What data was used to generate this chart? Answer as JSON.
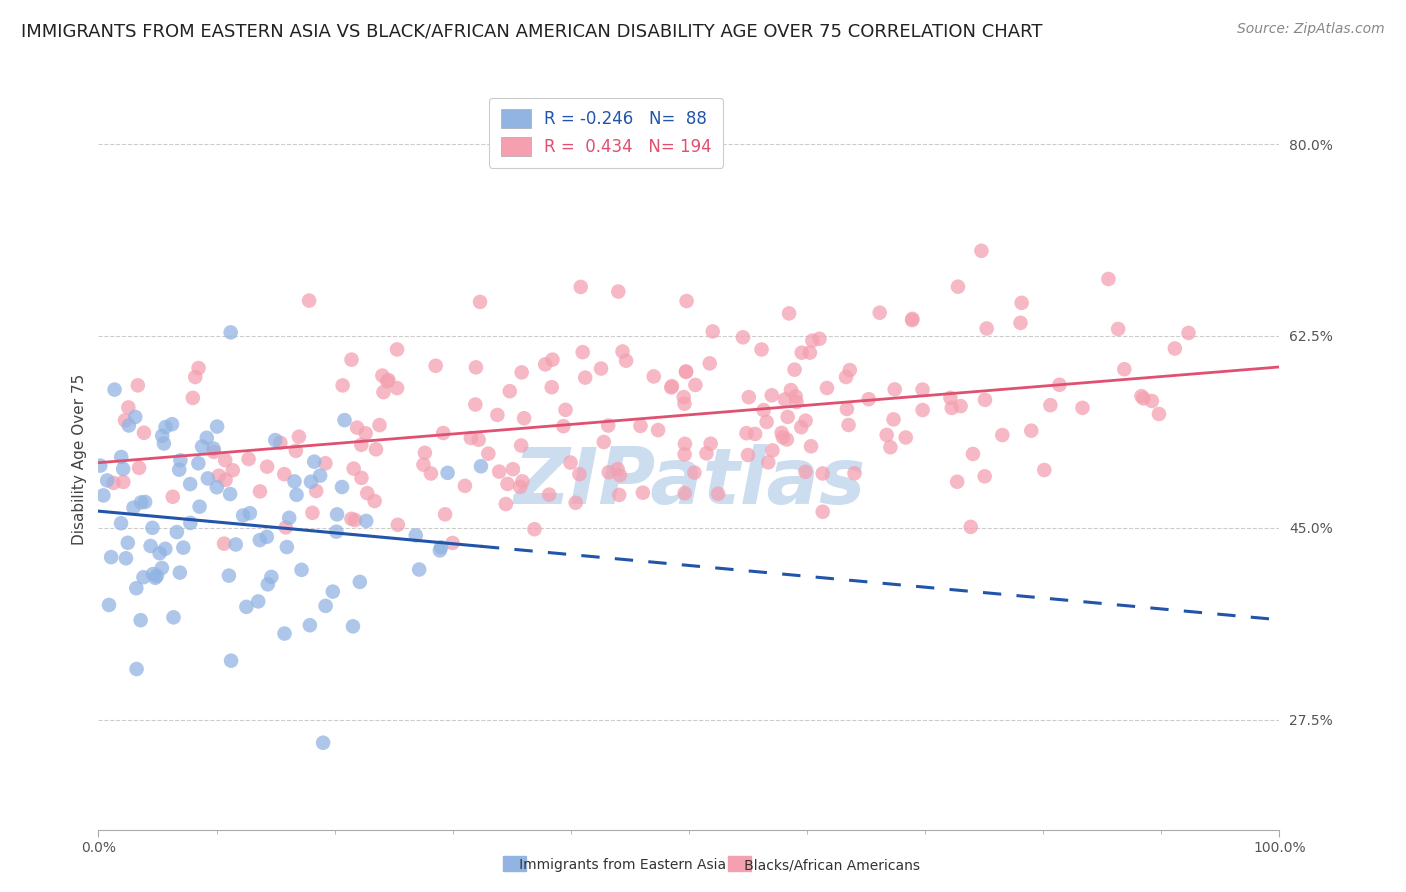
{
  "title": "IMMIGRANTS FROM EASTERN ASIA VS BLACK/AFRICAN AMERICAN DISABILITY AGE OVER 75 CORRELATION CHART",
  "source": "Source: ZipAtlas.com",
  "ylabel": "Disability Age Over 75",
  "xlim": [
    0.0,
    1.0
  ],
  "ylim": [
    0.175,
    0.85
  ],
  "yticks": [
    0.275,
    0.45,
    0.625,
    0.8
  ],
  "ytick_labels": [
    "27.5%",
    "45.0%",
    "62.5%",
    "80.0%"
  ],
  "xtick_labels": [
    "0.0%",
    "100.0%"
  ],
  "blue_R": -0.246,
  "blue_N": 88,
  "pink_R": 0.434,
  "pink_N": 194,
  "blue_color": "#92b4e3",
  "pink_color": "#f4a0b0",
  "blue_line_color": "#2255aa",
  "pink_line_color": "#e05070",
  "watermark": "ZIPatlas",
  "watermark_color": "#ccddf0",
  "legend_label_blue": "Immigrants from Eastern Asia",
  "legend_label_pink": "Blacks/African Americans",
  "title_fontsize": 13,
  "source_fontsize": 10,
  "axis_label_fontsize": 11,
  "tick_fontsize": 10
}
